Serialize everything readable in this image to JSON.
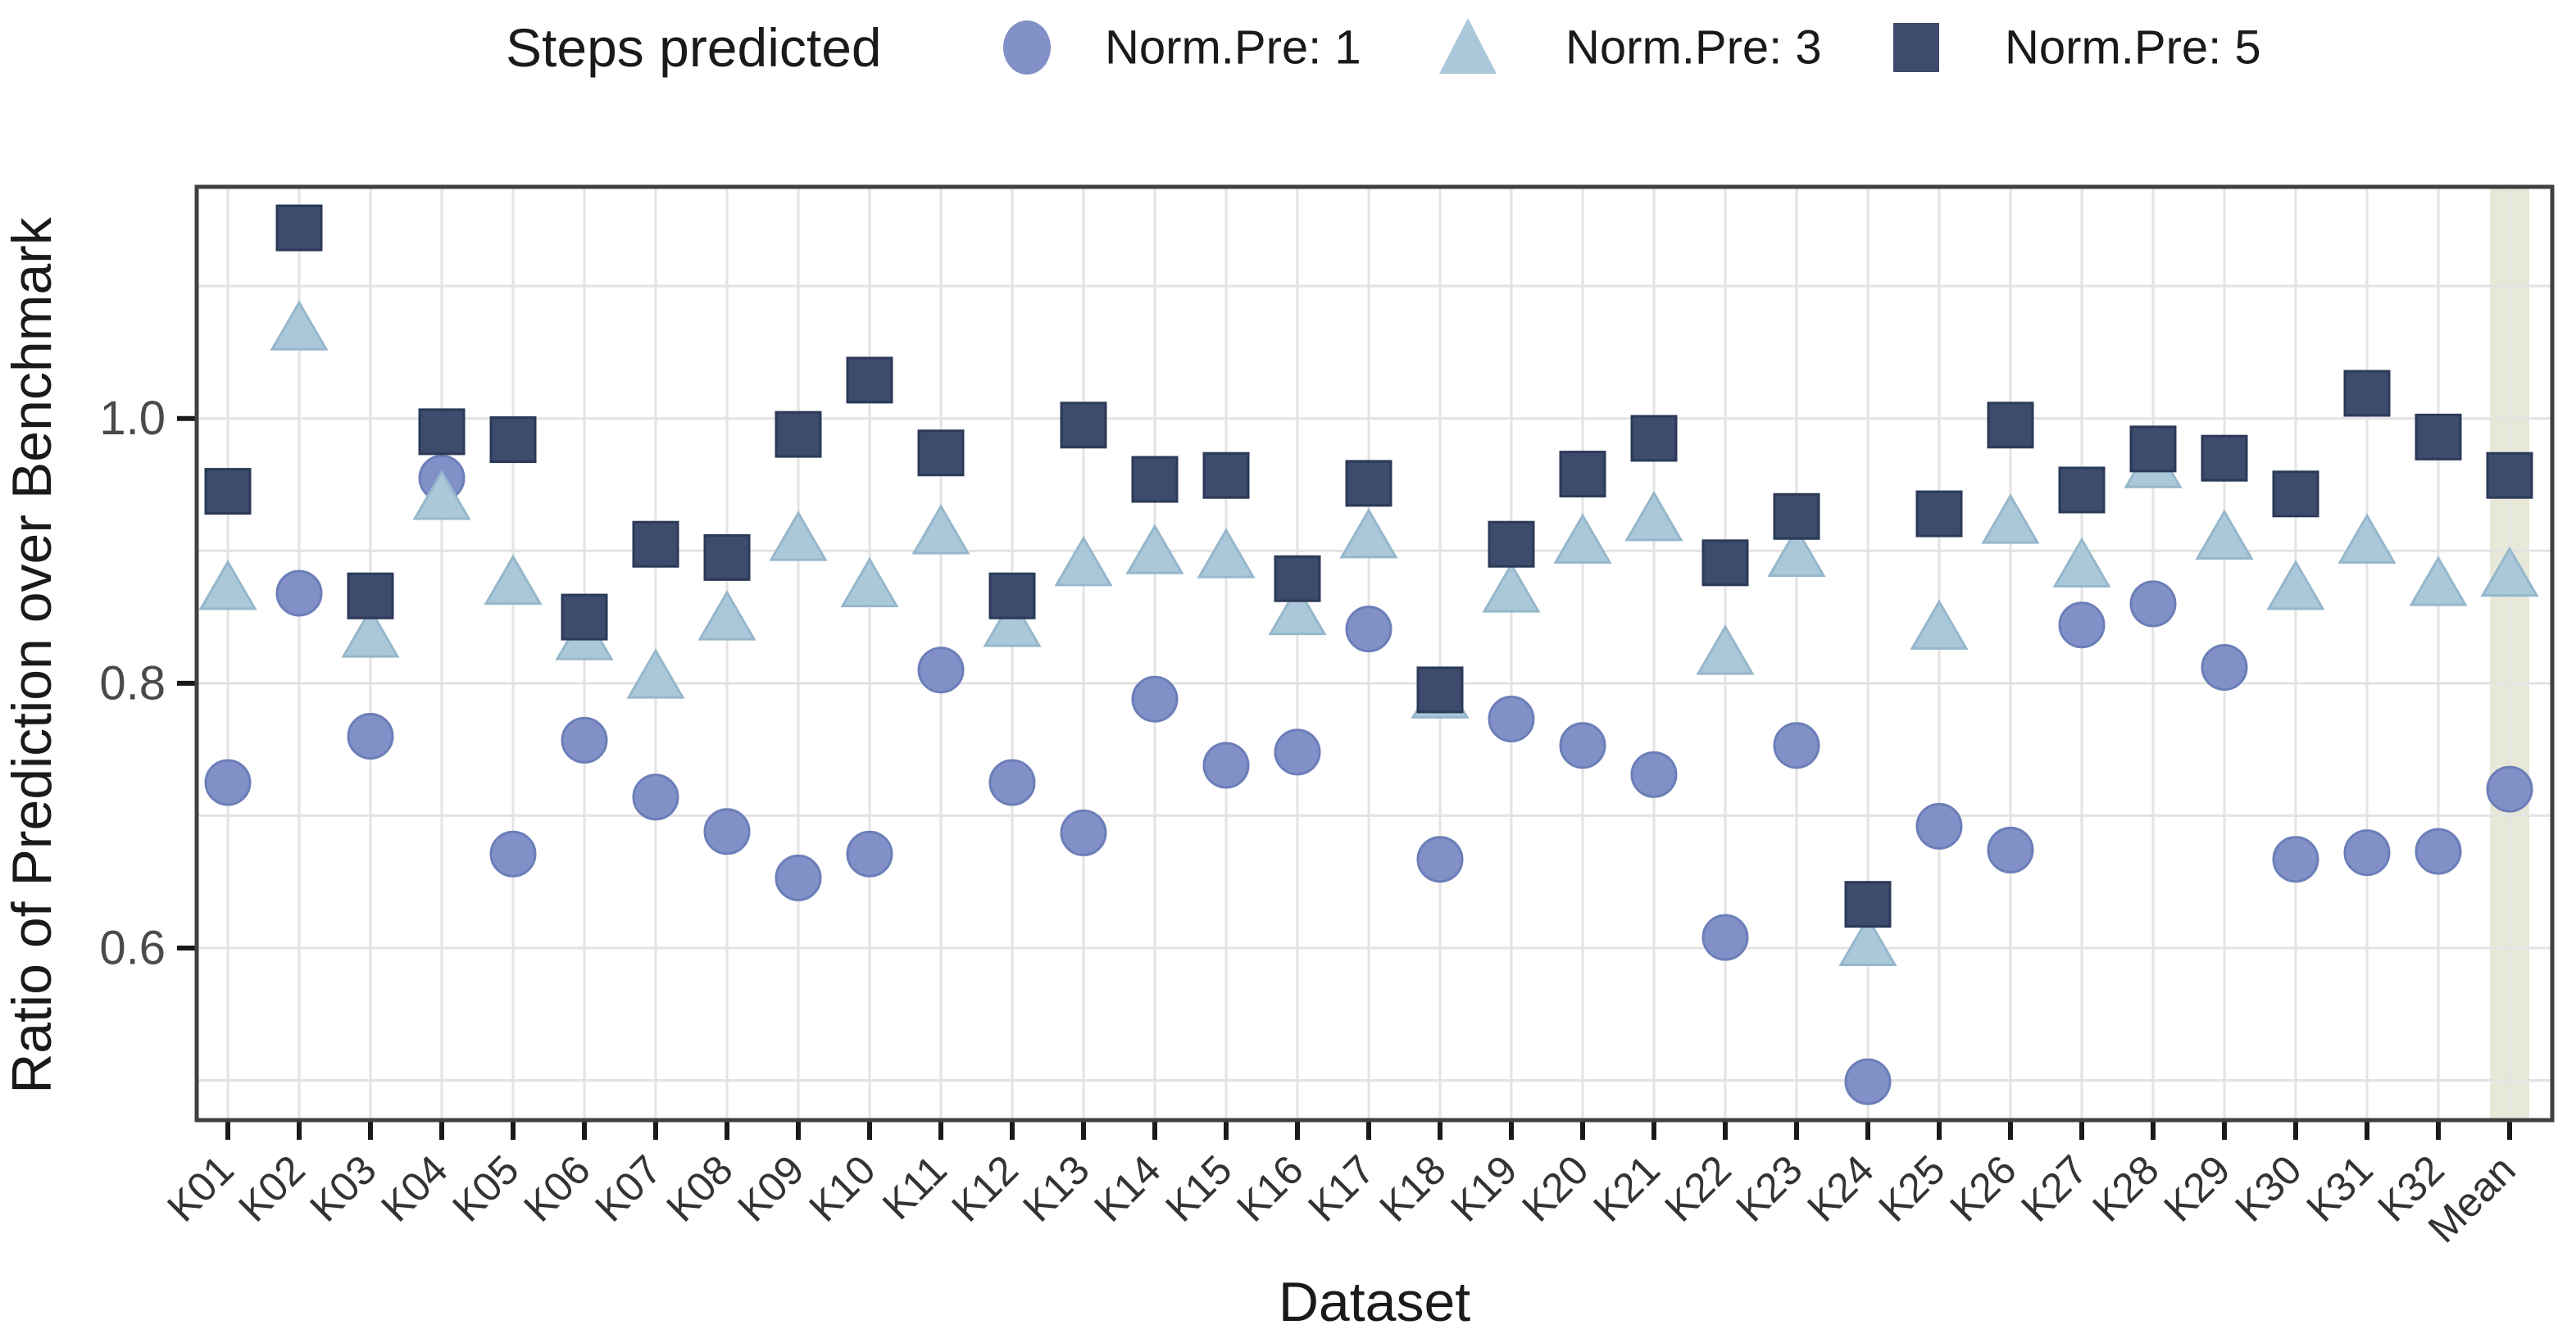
{
  "chart": {
    "legend": {
      "title": "Steps predicted",
      "items": [
        {
          "label": "Norm.Pre: 1",
          "marker": "circle-icon",
          "color": "#8191c7"
        },
        {
          "label": "Norm.Pre: 3",
          "marker": "triangle-icon",
          "color": "#abc8da"
        },
        {
          "label": "Norm.Pre: 5",
          "marker": "square-icon",
          "color": "#3d4b6d"
        }
      ]
    },
    "y_axis": {
      "title": "Ratio of Prediction over Benchmark",
      "tick_labels": [
        "0.6",
        "0.8",
        "1.0"
      ],
      "tick_values": [
        0.6,
        0.8,
        1.0
      ]
    },
    "x_axis": {
      "title": "Dataset"
    }
  },
  "chart_data": {
    "type": "scatter",
    "title": "Steps predicted",
    "xlabel": "Dataset",
    "ylabel": "Ratio of Prediction over Benchmark",
    "categories": [
      "K01",
      "K02",
      "K03",
      "K04",
      "K05",
      "K06",
      "K07",
      "K08",
      "K09",
      "K10",
      "K11",
      "K12",
      "K13",
      "K14",
      "K15",
      "K16",
      "K17",
      "K18",
      "K19",
      "K20",
      "K21",
      "K22",
      "K23",
      "K24",
      "K25",
      "K26",
      "K27",
      "K28",
      "K29",
      "K30",
      "K31",
      "K32",
      "Mean"
    ],
    "series": [
      {
        "name": "Norm.Pre: 1",
        "marker": "circle",
        "color": "#8191c7",
        "edge_color": "#6c7eb8",
        "values": [
          0.725,
          0.868,
          0.76,
          0.955,
          0.671,
          0.757,
          0.714,
          0.688,
          0.653,
          0.671,
          0.81,
          0.725,
          0.687,
          0.788,
          0.738,
          0.748,
          0.841,
          0.667,
          0.773,
          0.753,
          0.731,
          0.608,
          0.753,
          0.499,
          0.692,
          0.674,
          0.844,
          0.86,
          0.812,
          0.667,
          0.672,
          0.673,
          0.72
        ]
      },
      {
        "name": "Norm.Pre: 3",
        "marker": "triangle",
        "color": "#abc8da",
        "edge_color": "#96b7cb",
        "values": [
          0.873,
          1.069,
          0.837,
          0.941,
          0.877,
          0.835,
          0.806,
          0.85,
          0.91,
          0.875,
          0.915,
          0.845,
          0.891,
          0.9,
          0.897,
          0.854,
          0.912,
          0.791,
          0.871,
          0.908,
          0.925,
          0.824,
          0.898,
          0.604,
          0.843,
          0.923,
          0.89,
          0.965,
          0.911,
          0.873,
          0.908,
          0.876,
          0.883
        ]
      },
      {
        "name": "Norm.Pre: 5",
        "marker": "square",
        "color": "#3d4b6d",
        "edge_color": "#2c3a58",
        "values": [
          0.945,
          1.144,
          0.866,
          0.99,
          0.984,
          0.85,
          0.905,
          0.895,
          0.988,
          1.029,
          0.974,
          0.866,
          0.995,
          0.954,
          0.957,
          0.879,
          0.951,
          0.795,
          0.905,
          0.958,
          0.985,
          0.891,
          0.926,
          0.633,
          0.928,
          0.995,
          0.946,
          0.977,
          0.97,
          0.943,
          1.019,
          0.986,
          0.957
        ]
      }
    ],
    "ylim": [
      0.47,
      1.175
    ],
    "yticks_labeled": [
      0.6,
      0.8,
      1.0
    ],
    "ygrid_values": [
      0.5,
      0.6,
      0.7,
      0.8,
      0.9,
      1.0,
      1.1
    ],
    "grid": "on",
    "legend_position": "top",
    "highlight_category": "Mean",
    "highlight_color": "#e8e8d8",
    "panel_border_color": "#404040",
    "grid_color": "#e3e3e3",
    "tick_color": "#1a1a1a",
    "tick_label_color": "#333333"
  }
}
